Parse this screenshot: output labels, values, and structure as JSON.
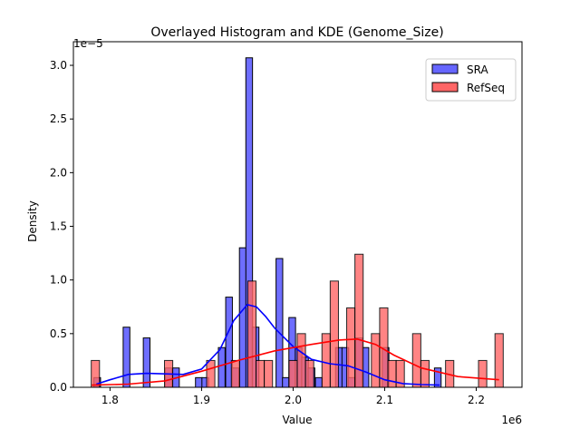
{
  "chart_data": {
    "type": "histogram+kde",
    "title": "Overlayed Histogram and KDE (Genome_Size)",
    "xlabel": "Value",
    "ylabel": "Density",
    "x_offset_label": "1e6",
    "y_offset_label": "1e−5",
    "xlim": [
      1.76,
      2.25
    ],
    "ylim": [
      0,
      3.22
    ],
    "xticks": [
      "1.8",
      "1.9",
      "2.0",
      "2.1",
      "2.2"
    ],
    "yticks": [
      "0.0",
      "0.5",
      "1.0",
      "1.5",
      "2.0",
      "2.5",
      "3.0"
    ],
    "grid": false,
    "legend_position": "top-right",
    "series": [
      {
        "name": "SRA",
        "color": "#0000ff",
        "fill": "#6666ff",
        "bin_width": 0.0073,
        "bins": [
          [
            1.786,
            0.09
          ],
          [
            1.818,
            0.56
          ],
          [
            1.84,
            0.46
          ],
          [
            1.864,
            0.18
          ],
          [
            1.872,
            0.18
          ],
          [
            1.897,
            0.09
          ],
          [
            1.904,
            0.09
          ],
          [
            1.922,
            0.37
          ],
          [
            1.93,
            0.84
          ],
          [
            1.937,
            0.18
          ],
          [
            1.945,
            1.3
          ],
          [
            1.952,
            3.07
          ],
          [
            1.959,
            0.56
          ],
          [
            1.985,
            1.2
          ],
          [
            1.992,
            0.09
          ],
          [
            1.999,
            0.65
          ],
          [
            2.006,
            0.37
          ],
          [
            2.013,
            0.28
          ],
          [
            2.02,
            0.18
          ],
          [
            2.028,
            0.09
          ],
          [
            2.05,
            0.37
          ],
          [
            2.057,
            0.37
          ],
          [
            2.064,
            0.09
          ],
          [
            2.072,
            0.46
          ],
          [
            2.079,
            0.37
          ],
          [
            2.101,
            0.37
          ],
          [
            2.158,
            0.18
          ]
        ],
        "kde": [
          [
            1.785,
            0.03
          ],
          [
            1.8,
            0.07
          ],
          [
            1.82,
            0.12
          ],
          [
            1.84,
            0.13
          ],
          [
            1.86,
            0.125
          ],
          [
            1.88,
            0.12
          ],
          [
            1.9,
            0.17
          ],
          [
            1.92,
            0.35
          ],
          [
            1.935,
            0.62
          ],
          [
            1.95,
            0.77
          ],
          [
            1.96,
            0.75
          ],
          [
            1.97,
            0.66
          ],
          [
            1.98,
            0.55
          ],
          [
            2.0,
            0.38
          ],
          [
            2.02,
            0.26
          ],
          [
            2.04,
            0.22
          ],
          [
            2.06,
            0.2
          ],
          [
            2.08,
            0.14
          ],
          [
            2.1,
            0.07
          ],
          [
            2.12,
            0.035
          ],
          [
            2.14,
            0.025
          ],
          [
            2.16,
            0.02
          ]
        ]
      },
      {
        "name": "RefSeq",
        "color": "#ff0000",
        "fill": "#ff6666",
        "bin_width": 0.009,
        "bins": [
          [
            1.784,
            0.25
          ],
          [
            1.864,
            0.25
          ],
          [
            1.91,
            0.25
          ],
          [
            1.937,
            0.25
          ],
          [
            1.955,
            0.99
          ],
          [
            1.964,
            0.25
          ],
          [
            1.973,
            0.25
          ],
          [
            2.0,
            0.25
          ],
          [
            2.009,
            0.5
          ],
          [
            2.018,
            0.25
          ],
          [
            2.036,
            0.5
          ],
          [
            2.045,
            0.99
          ],
          [
            2.063,
            0.74
          ],
          [
            2.072,
            1.24
          ],
          [
            2.09,
            0.5
          ],
          [
            2.099,
            0.74
          ],
          [
            2.108,
            0.25
          ],
          [
            2.117,
            0.25
          ],
          [
            2.135,
            0.5
          ],
          [
            2.144,
            0.25
          ],
          [
            2.171,
            0.25
          ],
          [
            2.207,
            0.25
          ],
          [
            2.225,
            0.5
          ]
        ],
        "kde": [
          [
            1.78,
            0.02
          ],
          [
            1.82,
            0.03
          ],
          [
            1.86,
            0.06
          ],
          [
            1.9,
            0.15
          ],
          [
            1.94,
            0.25
          ],
          [
            1.98,
            0.34
          ],
          [
            2.02,
            0.4
          ],
          [
            2.05,
            0.44
          ],
          [
            2.07,
            0.45
          ],
          [
            2.09,
            0.4
          ],
          [
            2.11,
            0.3
          ],
          [
            2.14,
            0.18
          ],
          [
            2.18,
            0.1
          ],
          [
            2.225,
            0.07
          ]
        ]
      }
    ]
  }
}
